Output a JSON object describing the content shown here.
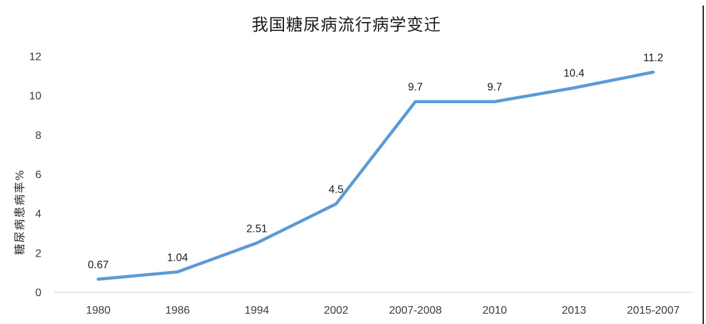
{
  "chart_data": {
    "type": "line",
    "title": "我国糖尿病流行病学变迁",
    "xlabel": "",
    "ylabel": "糖尿病患病率%",
    "categories": [
      "1980",
      "1986",
      "1994",
      "2002",
      "2007-2008",
      "2010",
      "2013",
      "2015-2007"
    ],
    "values": [
      0.67,
      1.04,
      2.51,
      4.5,
      9.7,
      9.7,
      10.4,
      11.2
    ],
    "data_labels": [
      "0.67",
      "1.04",
      "2.51",
      "4.5",
      "9.7",
      "9.7",
      "10.4",
      "11.2"
    ],
    "ylim": [
      0,
      12
    ],
    "yticks": [
      0,
      2,
      4,
      6,
      8,
      10,
      12
    ],
    "grid": false,
    "legend": "none",
    "line_color": "#5B9BD5",
    "axis_line_color": "#D9D9D9",
    "tick_text_color": "#3b3b3b",
    "label_text_color": "#1a1a1a"
  }
}
